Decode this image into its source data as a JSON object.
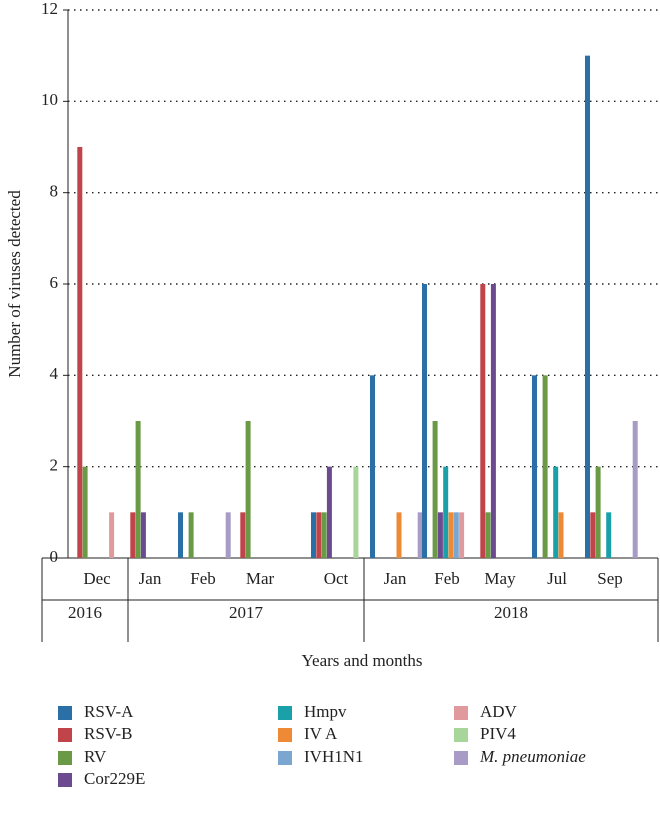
{
  "chart_data": {
    "type": "bar",
    "y_label": "Number of viruses detected",
    "x_label": "Years and months",
    "categories": [
      "Dec",
      "Jan",
      "Feb",
      "Mar",
      "Oct",
      "Jan",
      "Feb",
      "May",
      "Jul",
      "Sep"
    ],
    "x_groups": [
      {
        "label": "2016",
        "count": 1
      },
      {
        "label": "2017",
        "count": 4
      },
      {
        "label": "2018",
        "count": 5
      }
    ],
    "ylim": [
      0,
      12
    ],
    "yticks": [
      0,
      2,
      4,
      6,
      8,
      10,
      12
    ],
    "grid": true,
    "series": [
      {
        "name": "RSV-A",
        "color": "#2a6fa5",
        "values": [
          0,
          0,
          1,
          0,
          1,
          4,
          6,
          0,
          4,
          11
        ]
      },
      {
        "name": "RSV-B",
        "color": "#c0444a",
        "values": [
          9,
          1,
          0,
          1,
          1,
          0,
          0,
          6,
          0,
          1
        ]
      },
      {
        "name": "RV",
        "color": "#6a9a45",
        "values": [
          2,
          3,
          1,
          3,
          1,
          0,
          3,
          1,
          4,
          2
        ]
      },
      {
        "name": "Cor229E",
        "color": "#6b4a8f",
        "values": [
          0,
          1,
          0,
          0,
          2,
          0,
          1,
          6,
          0,
          0
        ]
      },
      {
        "name": "Hmpv",
        "color": "#1aa0a8",
        "values": [
          0,
          0,
          0,
          0,
          0,
          0,
          2,
          0,
          2,
          1
        ]
      },
      {
        "name": "IV A",
        "color": "#ee8a35",
        "values": [
          0,
          0,
          0,
          0,
          0,
          1,
          1,
          0,
          1,
          0
        ]
      },
      {
        "name": "IVH1N1",
        "color": "#7aa6d0",
        "values": [
          0,
          0,
          0,
          0,
          0,
          0,
          1,
          0,
          0,
          0
        ]
      },
      {
        "name": "ADV",
        "color": "#e09a9e",
        "values": [
          1,
          0,
          0,
          0,
          0,
          0,
          1,
          0,
          0,
          0
        ]
      },
      {
        "name": "PIV4",
        "color": "#a8d59a",
        "values": [
          0,
          0,
          0,
          0,
          2,
          0,
          0,
          0,
          0,
          0
        ]
      },
      {
        "name": "M. pneumoniae",
        "color": "#a89bc5",
        "values": [
          0,
          0,
          1,
          0,
          0,
          1,
          0,
          0,
          0,
          3
        ]
      }
    ]
  }
}
